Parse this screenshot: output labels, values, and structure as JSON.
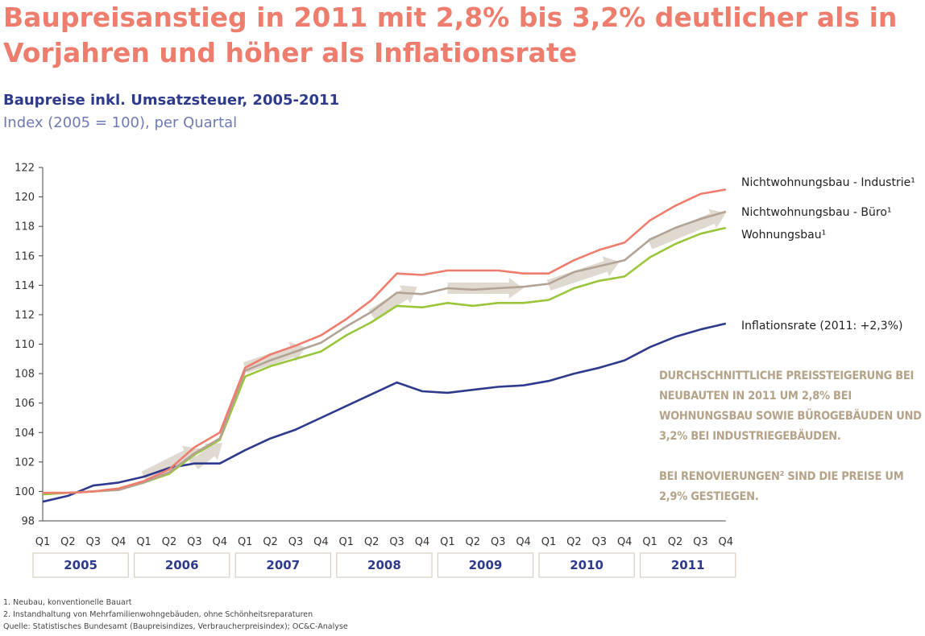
{
  "header": {
    "title": "Baupreisanstieg in 2011 mit 2,8% bis 3,2% deutlicher als in Vorjahren und höher als Inflationsrate",
    "subtitle": "Baupreise inkl. Umsatzsteuer, 2005-2011",
    "subtitle2": "Index (2005 = 100), per Quartal"
  },
  "chart_data": {
    "type": "line",
    "ylim": [
      98,
      122
    ],
    "y_ticks": [
      "98",
      "100",
      "102",
      "104",
      "106",
      "108",
      "110",
      "112",
      "114",
      "116",
      "118",
      "120",
      "122"
    ],
    "x_tick_labels": [
      "Q1",
      "Q2",
      "Q3",
      "Q4",
      "Q1",
      "Q2",
      "Q3",
      "Q4",
      "Q1",
      "Q2",
      "Q3",
      "Q4",
      "Q1",
      "Q2",
      "Q3",
      "Q4",
      "Q1",
      "Q2",
      "Q3",
      "Q4",
      "Q1",
      "Q2",
      "Q3",
      "Q4",
      "Q1",
      "Q2",
      "Q3",
      "Q4"
    ],
    "years": [
      "2005",
      "2006",
      "2007",
      "2008",
      "2009",
      "2010",
      "2011"
    ],
    "grid": false,
    "series": [
      {
        "name": "Nichtwohnungsbau - Industrie¹",
        "color": "#ee7d6d",
        "values": [
          99.9,
          99.9,
          100.0,
          100.2,
          100.7,
          101.5,
          103.0,
          104.0,
          108.4,
          109.3,
          109.9,
          110.6,
          111.7,
          113.0,
          114.8,
          114.7,
          115.0,
          115.0,
          115.0,
          114.8,
          114.8,
          115.7,
          116.4,
          116.9,
          118.4,
          119.4,
          120.2,
          120.5
        ]
      },
      {
        "name": "Nichtwohnungsbau - Büro¹",
        "color": "#b2a395",
        "values": [
          99.9,
          99.9,
          100.0,
          100.1,
          100.6,
          101.3,
          102.6,
          103.6,
          108.2,
          108.9,
          109.5,
          110.1,
          111.2,
          112.2,
          113.5,
          113.4,
          113.8,
          113.7,
          113.8,
          113.9,
          114.1,
          114.9,
          115.3,
          115.7,
          117.1,
          117.9,
          118.5,
          119.0
        ]
      },
      {
        "name": "Wohnungsbau¹",
        "color": "#9bc63b",
        "values": [
          99.8,
          99.9,
          100.0,
          100.1,
          100.6,
          101.2,
          102.5,
          103.5,
          107.8,
          108.5,
          109.0,
          109.5,
          110.6,
          111.5,
          112.6,
          112.5,
          112.8,
          112.6,
          112.8,
          112.8,
          113.0,
          113.8,
          114.3,
          114.6,
          115.9,
          116.8,
          117.5,
          117.9
        ]
      },
      {
        "name": "Inflationsrate (2011: +2,3%)",
        "color": "#2e3a8c",
        "values": [
          99.3,
          99.7,
          100.4,
          100.6,
          101.0,
          101.6,
          101.9,
          101.9,
          102.8,
          103.6,
          104.2,
          105.0,
          105.8,
          106.6,
          107.4,
          106.8,
          106.7,
          106.9,
          107.1,
          107.2,
          107.5,
          108.0,
          108.4,
          108.9,
          109.8,
          110.5,
          111.0,
          111.4
        ]
      }
    ]
  },
  "annotation": {
    "line1": "DURCHSCHNITTLICHE PREISSTEIGERUNG BEI NEUBAUTEN IN 2011 UM 2,8% BEI WOHNUNGSBAU SOWIE BÜROGEBÄUDEN UND 3,2% BEI INDUSTRIEGEBÄUDEN.",
    "line2": "BEI RENOVIERUNGEN² SIND DIE PREISE UM 2,9% GESTIEGEN."
  },
  "footnotes": {
    "n1": "1.     Neubau, konventionelle Bauart",
    "n2": "2.     Instandhaltung von Mehrfamilienwohngebäuden, ohne Schönheitsreparaturen",
    "source": "Quelle: Statistisches Bundesamt (Baupreisindizes, Verbraucherpreisindex); OC&C-Analyse"
  }
}
